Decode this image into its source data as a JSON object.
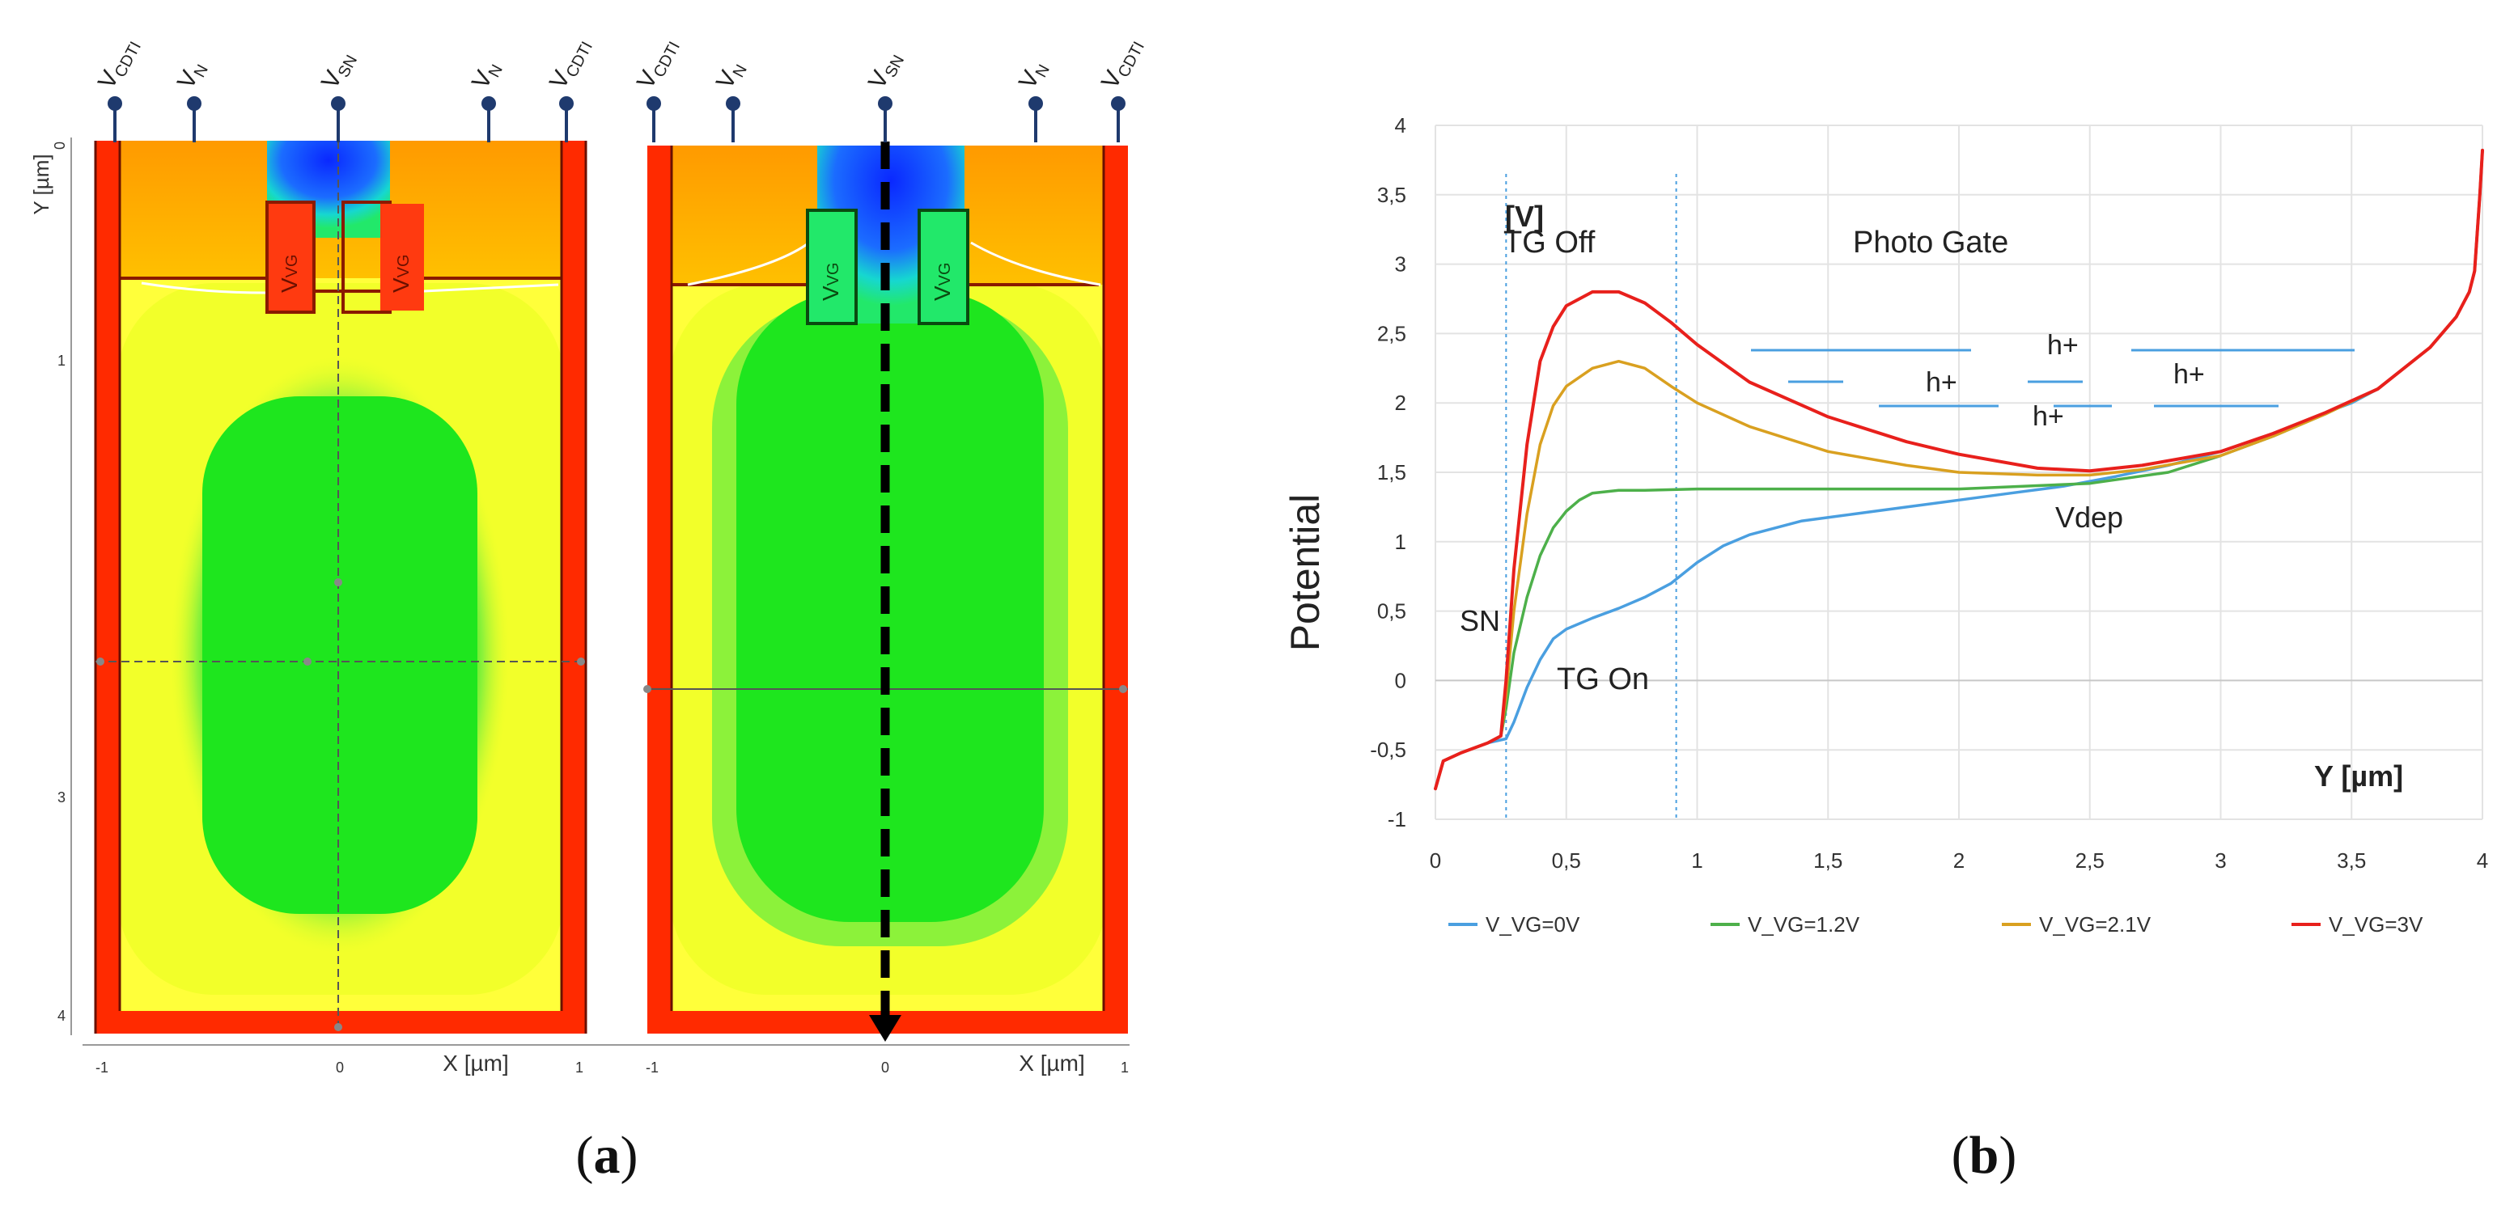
{
  "panel_a": {
    "caption_letter": "a",
    "terminals": [
      "V",
      "V",
      "V",
      "V",
      "V"
    ],
    "terminal_subs": [
      "CDTI",
      "N",
      "SN",
      "N",
      "CDTI"
    ],
    "gate_label_main": "V",
    "gate_label_sub": "VG",
    "y_axis_label": "Y [µm]",
    "x_axis_label": "X [µm]",
    "y_ticks": [
      "0",
      "1",
      "3",
      "4"
    ],
    "x_ticks": [
      "-1",
      "0",
      "1"
    ],
    "colors": {
      "trench": "#ff2a00",
      "surface": "#ffb300",
      "bulk_outer": "#ffff22",
      "bulk_mid": "#b8ff3a",
      "depletion": "#1ee61e",
      "storage_node": "#1040ff",
      "arrow": "#000000"
    }
  },
  "panel_b": {
    "caption_letter": "b",
    "annotations": {
      "unit": "[V]",
      "tg_off": "TG Off",
      "photo_gate": "Photo Gate",
      "hplus": [
        "h+",
        "h+",
        "h+",
        "h+"
      ],
      "vdep": "Vdep",
      "sn": "SN",
      "tg_on": "TG On",
      "x_unit": "Y [µm]"
    }
  },
  "chart_data": {
    "type": "line",
    "title": "",
    "xlabel": "Y [µm]",
    "ylabel": "Potential",
    "xlim": [
      0,
      4
    ],
    "ylim": [
      -1,
      4
    ],
    "x_ticks": [
      "0",
      "0,5",
      "1",
      "1,5",
      "2",
      "2,5",
      "3",
      "3,5",
      "4"
    ],
    "y_ticks": [
      "-1",
      "-0,5",
      "0",
      "0,5",
      "1",
      "1,5",
      "2",
      "2,5",
      "3",
      "3,5",
      "4"
    ],
    "grid": true,
    "legend_position": "bottom",
    "reference_lines_x": [
      0.27,
      0.92
    ],
    "series": [
      {
        "name": "V_VG=0V",
        "color": "#4a9fe0",
        "points": [
          [
            0,
            -0.78
          ],
          [
            0.03,
            -0.58
          ],
          [
            0.1,
            -0.52
          ],
          [
            0.2,
            -0.45
          ],
          [
            0.27,
            -0.42
          ],
          [
            0.3,
            -0.3
          ],
          [
            0.35,
            -0.05
          ],
          [
            0.4,
            0.15
          ],
          [
            0.45,
            0.3
          ],
          [
            0.5,
            0.37
          ],
          [
            0.6,
            0.45
          ],
          [
            0.7,
            0.52
          ],
          [
            0.8,
            0.6
          ],
          [
            0.9,
            0.7
          ],
          [
            1.0,
            0.85
          ],
          [
            1.1,
            0.97
          ],
          [
            1.2,
            1.05
          ],
          [
            1.4,
            1.15
          ],
          [
            1.6,
            1.2
          ],
          [
            1.8,
            1.25
          ],
          [
            2.0,
            1.3
          ],
          [
            2.2,
            1.35
          ],
          [
            2.4,
            1.4
          ],
          [
            2.6,
            1.47
          ],
          [
            2.8,
            1.55
          ],
          [
            3.0,
            1.65
          ],
          [
            3.2,
            1.78
          ],
          [
            3.4,
            1.93
          ],
          [
            3.5,
            2.0
          ],
          [
            3.6,
            2.1
          ],
          [
            3.7,
            2.25
          ],
          [
            3.8,
            2.4
          ],
          [
            3.9,
            2.62
          ],
          [
            3.95,
            2.8
          ],
          [
            3.97,
            2.95
          ],
          [
            3.99,
            3.5
          ],
          [
            4.0,
            3.82
          ]
        ]
      },
      {
        "name": "V_VG=1.2V",
        "color": "#4db04a",
        "points": [
          [
            0,
            -0.78
          ],
          [
            0.03,
            -0.58
          ],
          [
            0.1,
            -0.52
          ],
          [
            0.2,
            -0.45
          ],
          [
            0.25,
            -0.4
          ],
          [
            0.27,
            -0.2
          ],
          [
            0.3,
            0.2
          ],
          [
            0.35,
            0.6
          ],
          [
            0.4,
            0.9
          ],
          [
            0.45,
            1.1
          ],
          [
            0.5,
            1.22
          ],
          [
            0.55,
            1.3
          ],
          [
            0.6,
            1.35
          ],
          [
            0.7,
            1.37
          ],
          [
            0.8,
            1.37
          ],
          [
            1.0,
            1.38
          ],
          [
            1.2,
            1.38
          ],
          [
            1.5,
            1.38
          ],
          [
            2.0,
            1.38
          ],
          [
            2.5,
            1.42
          ],
          [
            2.8,
            1.5
          ],
          [
            3.0,
            1.62
          ],
          [
            3.2,
            1.76
          ],
          [
            3.4,
            1.92
          ],
          [
            3.6,
            2.1
          ],
          [
            3.8,
            2.4
          ],
          [
            3.9,
            2.62
          ],
          [
            3.95,
            2.8
          ],
          [
            3.97,
            2.95
          ],
          [
            3.99,
            3.5
          ],
          [
            4.0,
            3.82
          ]
        ]
      },
      {
        "name": "V_VG=2.1V",
        "color": "#d9a020",
        "points": [
          [
            0,
            -0.78
          ],
          [
            0.03,
            -0.58
          ],
          [
            0.1,
            -0.52
          ],
          [
            0.2,
            -0.45
          ],
          [
            0.25,
            -0.4
          ],
          [
            0.27,
            -0.1
          ],
          [
            0.3,
            0.5
          ],
          [
            0.35,
            1.2
          ],
          [
            0.4,
            1.7
          ],
          [
            0.45,
            1.98
          ],
          [
            0.5,
            2.12
          ],
          [
            0.6,
            2.25
          ],
          [
            0.7,
            2.3
          ],
          [
            0.8,
            2.25
          ],
          [
            0.9,
            2.12
          ],
          [
            1.0,
            2.0
          ],
          [
            1.2,
            1.83
          ],
          [
            1.5,
            1.65
          ],
          [
            1.8,
            1.55
          ],
          [
            2.0,
            1.5
          ],
          [
            2.3,
            1.48
          ],
          [
            2.5,
            1.48
          ],
          [
            2.7,
            1.52
          ],
          [
            3.0,
            1.62
          ],
          [
            3.2,
            1.76
          ],
          [
            3.4,
            1.92
          ],
          [
            3.6,
            2.1
          ],
          [
            3.8,
            2.4
          ],
          [
            3.9,
            2.62
          ],
          [
            3.95,
            2.8
          ],
          [
            3.97,
            2.95
          ],
          [
            3.99,
            3.5
          ],
          [
            4.0,
            3.82
          ]
        ]
      },
      {
        "name": "V_VG=3V",
        "color": "#e8201c",
        "points": [
          [
            0,
            -0.78
          ],
          [
            0.03,
            -0.58
          ],
          [
            0.1,
            -0.52
          ],
          [
            0.2,
            -0.45
          ],
          [
            0.25,
            -0.4
          ],
          [
            0.27,
            0.0
          ],
          [
            0.3,
            0.8
          ],
          [
            0.35,
            1.7
          ],
          [
            0.4,
            2.3
          ],
          [
            0.45,
            2.55
          ],
          [
            0.5,
            2.7
          ],
          [
            0.6,
            2.8
          ],
          [
            0.7,
            2.8
          ],
          [
            0.8,
            2.72
          ],
          [
            0.9,
            2.58
          ],
          [
            1.0,
            2.42
          ],
          [
            1.2,
            2.15
          ],
          [
            1.5,
            1.9
          ],
          [
            1.8,
            1.72
          ],
          [
            2.0,
            1.63
          ],
          [
            2.3,
            1.53
          ],
          [
            2.5,
            1.51
          ],
          [
            2.7,
            1.55
          ],
          [
            3.0,
            1.65
          ],
          [
            3.2,
            1.78
          ],
          [
            3.4,
            1.93
          ],
          [
            3.6,
            2.1
          ],
          [
            3.8,
            2.4
          ],
          [
            3.9,
            2.62
          ],
          [
            3.95,
            2.8
          ],
          [
            3.97,
            2.95
          ],
          [
            3.99,
            3.5
          ],
          [
            4.0,
            3.82
          ]
        ]
      }
    ]
  }
}
